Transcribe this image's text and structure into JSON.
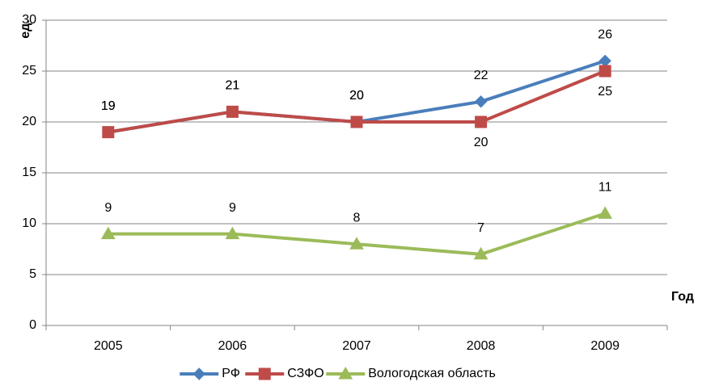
{
  "chart_data": {
    "type": "line",
    "y_label": "ед.",
    "x_label": "Год",
    "categories": [
      "2005",
      "2006",
      "2007",
      "2008",
      "2009"
    ],
    "series": [
      {
        "name": "РФ",
        "color": "#4a7ebb",
        "marker": "diamond",
        "values": [
          19,
          21,
          20,
          22,
          26
        ]
      },
      {
        "name": "СЗФО",
        "color": "#be4b48",
        "marker": "square",
        "values": [
          19,
          21,
          20,
          20,
          25
        ]
      },
      {
        "name": "Вологодская область",
        "color": "#9bbb59",
        "marker": "triangle",
        "values": [
          9,
          9,
          8,
          7,
          11
        ]
      }
    ],
    "ylim": [
      0,
      30
    ],
    "yticks": [
      0,
      5,
      10,
      15,
      20,
      25,
      30
    ],
    "grid": true,
    "legend": "bottom"
  }
}
